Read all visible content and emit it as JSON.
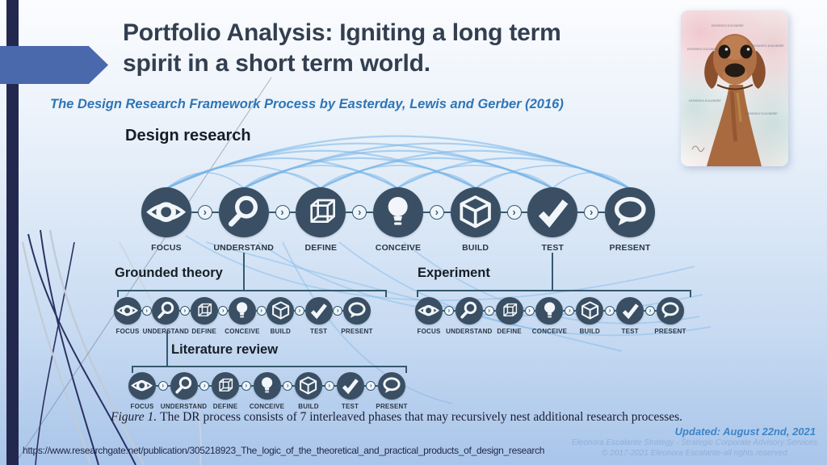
{
  "slide": {
    "title": "Portfolio Analysis: Igniting a long term spirit in a short term world.",
    "subtitle": "The Design Research Framework Process by Easterday, Lewis and Gerber (2016)"
  },
  "diagram": {
    "heading": "Design research",
    "connector_chevron": "›",
    "phases": [
      {
        "label": "FOCUS",
        "icon": "eye-icon"
      },
      {
        "label": "UNDERSTAND",
        "icon": "magnifier-icon"
      },
      {
        "label": "DEFINE",
        "icon": "wireframe-cube-icon"
      },
      {
        "label": "CONCEIVE",
        "icon": "lightbulb-icon"
      },
      {
        "label": "BUILD",
        "icon": "cube-icon"
      },
      {
        "label": "TEST",
        "icon": "check-icon"
      },
      {
        "label": "PRESENT",
        "icon": "speech-bubble-icon"
      }
    ],
    "subprocesses": [
      {
        "id": "grounded",
        "title": "Grounded theory"
      },
      {
        "id": "experiment",
        "title": "Experiment"
      },
      {
        "id": "literature",
        "title": "Literature review"
      }
    ],
    "caption": {
      "lead": "Figure 1.",
      "text": "The DR process consists of 7 interleaved phases that may recursively nest additional research processes."
    }
  },
  "footer": {
    "source_url": "https://www.researchgate.net/publication/305218923_The_logic_of_the_theoretical_and_practical_products_of_design_research",
    "updated": "Updated: August 22nd, 2021",
    "credit_line1": "Eleonora Escalante Strategy - Strategic Corporate Advisory Services",
    "credit_line2": "© 2017-2021  Eleonora Escalante-all rights reserved"
  },
  "artwork": {
    "watermark": "Eleonora Escalante"
  },
  "colors": {
    "accent_blue": "#2e75b6",
    "navy_bar": "#23284f",
    "arrow_blue": "#4a69ad",
    "phase_circle": "#3a4f63",
    "arc_blue": "#76b5e8",
    "connector_line": "#35596e",
    "title_text": "#333f50"
  }
}
